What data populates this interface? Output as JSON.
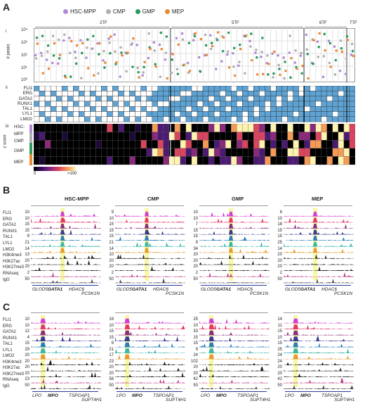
{
  "panels": {
    "a": "A",
    "b": "B",
    "c": "C"
  },
  "panelA": {
    "legend": [
      {
        "label": "HSC-MPP",
        "color": "#b28bd6"
      },
      {
        "label": "CMP",
        "color": "#b0b0b0"
      },
      {
        "label": "GMP",
        "color": "#2e9a5e"
      },
      {
        "label": "MEP",
        "color": "#e98a3a"
      }
    ],
    "groups": [
      "2TF",
      "5TF",
      "6TF",
      "7TF"
    ],
    "roman": [
      "i",
      "ii",
      "iii"
    ],
    "ylabel": "# peaks",
    "yticks": [
      "10⁴",
      "10³",
      "10²",
      "10¹",
      "10⁰"
    ],
    "tfs": [
      "FLI1",
      "ERG",
      "GATA2",
      "RUNX1",
      "TAL1",
      "LYL1",
      "LMO2"
    ],
    "zlabel": "z score",
    "heat_rows": [
      "HSC-",
      "MPP",
      "CMP",
      "GMP",
      "MEP"
    ],
    "colorbar": {
      "min": "0",
      "max": ">100"
    }
  },
  "panelB": {
    "groups": [
      "HSC-MPP",
      "CMP",
      "GMP",
      "MEP"
    ],
    "tracks": [
      "FLI1",
      "ERG",
      "GATA2",
      "RUNX1",
      "TAL1",
      "LYL1",
      "LMO2",
      "H3K4me3",
      "H3K27ac",
      "H3K27me3",
      "RNAseq",
      "IgG"
    ],
    "colors": [
      "#d43bd6",
      "#e6396a",
      "#8b2f7a",
      "#3a3a8f",
      "#2b7fb8",
      "#3bb7a8",
      "#e99a2c",
      "#222222",
      "#222222",
      "#222222",
      "#c0408a",
      "#444444"
    ],
    "scales": [
      [
        "10",
        "10",
        "15",
        "15",
        "9",
        "21",
        "14",
        "13",
        "20",
        "20",
        "2",
        "50"
      ],
      [
        "9",
        "10",
        "15",
        "15",
        "15",
        "21",
        "14",
        "10",
        "20",
        "20",
        "2",
        "50"
      ],
      [
        "10",
        "10",
        "7",
        "15",
        "15",
        "9",
        "34",
        "20",
        "20",
        "20",
        "2",
        "50"
      ],
      [
        "6",
        "10",
        "18",
        "15",
        "15",
        "25",
        "14",
        "20",
        "20",
        "20",
        "2",
        "50"
      ]
    ],
    "genes": {
      "g1": "GLOD5",
      "g2": "GATA1",
      "g3": "HDAC6",
      "g4": "PCSK1N"
    }
  },
  "panelC": {
    "tracks": [
      "FLI1",
      "ERG",
      "GATA2",
      "RUNX1",
      "TAL1",
      "LYL1",
      "LMO2",
      "H3K4me3",
      "H3K27ac",
      "H3K27me3",
      "RNAseq",
      "IgG"
    ],
    "scales": [
      [
        "10",
        "10",
        "12",
        "4",
        "15",
        "29",
        "20",
        "20",
        "20",
        "20",
        "23",
        "50"
      ],
      [
        "19",
        "10",
        "15",
        "15",
        "9",
        "21",
        "17",
        "23",
        "20",
        "20",
        "58",
        "50"
      ],
      [
        "25",
        "10",
        "33",
        "15",
        "15",
        "9",
        "24",
        "102",
        "20",
        "20",
        "42",
        "50"
      ],
      [
        "14",
        "11",
        "15",
        "10",
        "15",
        "25",
        "24",
        "24",
        "20",
        "20",
        "42",
        "50"
      ]
    ],
    "genes": {
      "g1": "LPO",
      "g2": "MPO",
      "g3": "TSPOAP1",
      "g4": "SUPT4H1"
    }
  }
}
